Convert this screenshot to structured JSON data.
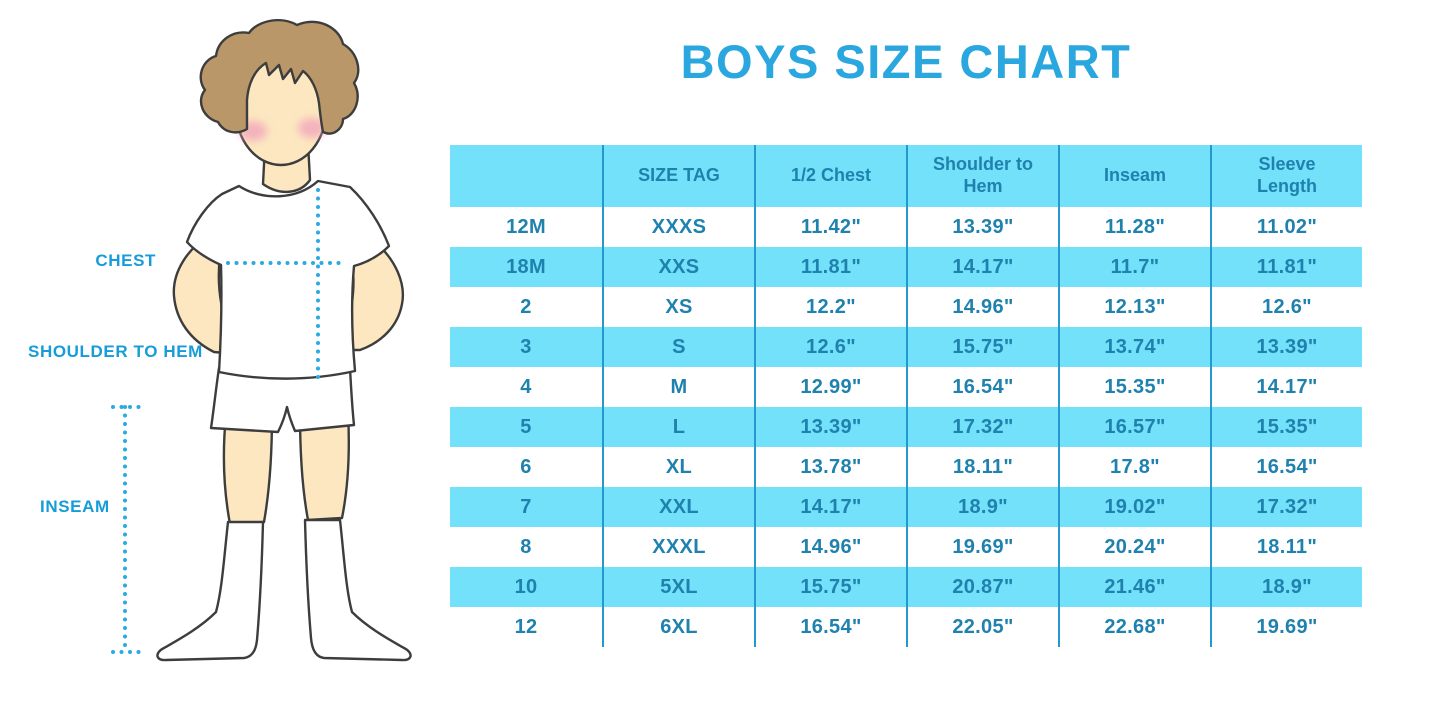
{
  "title": "BOYS SIZE CHART",
  "figure": {
    "labels": {
      "chest": "CHEST",
      "shoulder_to_hem": "SHOULDER TO HEM",
      "inseam": "INSEAM"
    }
  },
  "chart_data": {
    "type": "table",
    "title": "BOYS SIZE CHART",
    "columns": [
      "",
      "SIZE TAG",
      "1/2 Chest",
      "Shoulder to Hem",
      "Inseam",
      "Sleeve Length"
    ],
    "rows": [
      [
        "12M",
        "XXXS",
        "11.42\"",
        "13.39\"",
        "11.28\"",
        "11.02\""
      ],
      [
        "18M",
        "XXS",
        "11.81\"",
        "14.17\"",
        "11.7\"",
        "11.81\""
      ],
      [
        "2",
        "XS",
        "12.2\"",
        "14.96\"",
        "12.13\"",
        "12.6\""
      ],
      [
        "3",
        "S",
        "12.6\"",
        "15.75\"",
        "13.74\"",
        "13.39\""
      ],
      [
        "4",
        "M",
        "12.99\"",
        "16.54\"",
        "15.35\"",
        "14.17\""
      ],
      [
        "5",
        "L",
        "13.39\"",
        "17.32\"",
        "16.57\"",
        "15.35\""
      ],
      [
        "6",
        "XL",
        "13.78\"",
        "18.11\"",
        "17.8\"",
        "16.54\""
      ],
      [
        "7",
        "XXL",
        "14.17\"",
        "18.9\"",
        "19.02\"",
        "17.32\""
      ],
      [
        "8",
        "XXXL",
        "14.96\"",
        "19.69\"",
        "20.24\"",
        "18.11\""
      ],
      [
        "10",
        "5XL",
        "15.75\"",
        "20.87\"",
        "21.46\"",
        "18.9\""
      ],
      [
        "12",
        "6XL",
        "16.54\"",
        "22.05\"",
        "22.68\"",
        "19.69\""
      ]
    ]
  },
  "colors": {
    "accent-cyan": "#73E1F9",
    "table-text": "#1F81AE",
    "divider": "#2599CE",
    "title-blue": "#2BA7DF",
    "label-blue": "#169CD9",
    "dotted-line": "#29ABE2",
    "skin": "#FCE7C0",
    "hair": "#BA9769",
    "blush": "#F19EBC",
    "outline": "#3D3D3D"
  }
}
